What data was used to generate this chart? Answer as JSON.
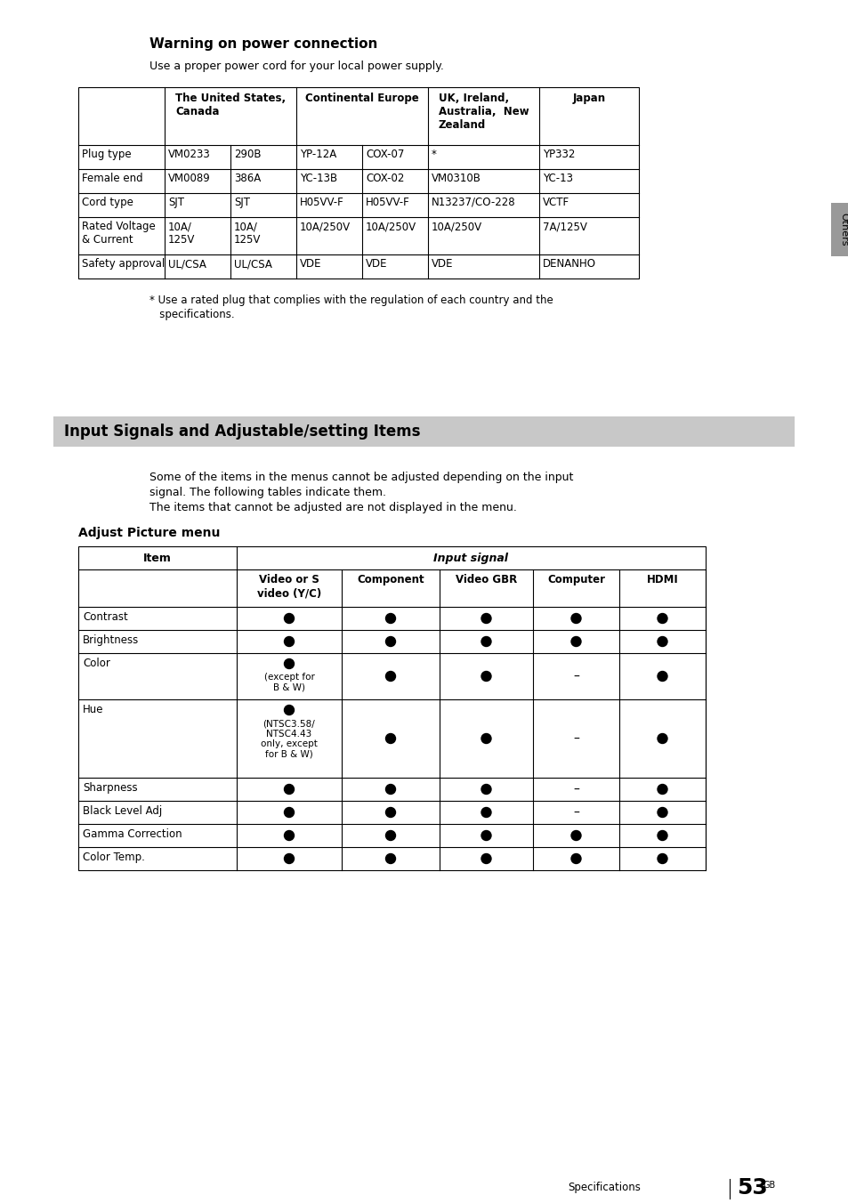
{
  "page_bg": "#ffffff",
  "title_warning": "Warning on power connection",
  "subtitle_warning": "Use a proper power cord for your local power supply.",
  "power_table_rows": [
    [
      "Plug type",
      "VM0233",
      "290B",
      "YP-12A",
      "COX-07",
      "*",
      "YP332"
    ],
    [
      "Female end",
      "VM0089",
      "386A",
      "YC-13B",
      "COX-02",
      "VM0310B",
      "YC-13"
    ],
    [
      "Cord type",
      "SJT",
      "SJT",
      "H05VV-F",
      "H05VV-F",
      "N13237/CO-228",
      "VCTF"
    ],
    [
      "Rated Voltage\n& Current",
      "10A/\n125V",
      "10A/\n125V",
      "10A/250V",
      "10A/250V",
      "10A/250V",
      "7A/125V"
    ],
    [
      "Safety approval",
      "UL/CSA",
      "UL/CSA",
      "VDE",
      "VDE",
      "VDE",
      "DENANHO"
    ]
  ],
  "footnote_line1": "* Use a rated plug that complies with the regulation of each country and the",
  "footnote_line2": "   specifications.",
  "section_title": "Input Signals and Adjustable/setting Items",
  "section_desc_line1": "Some of the items in the menus cannot be adjusted depending on the input",
  "section_desc_line2": "signal. The following tables indicate them.",
  "section_desc_line3": "The items that cannot be adjusted are not displayed in the menu.",
  "adjust_title": "Adjust Picture menu",
  "adjust_sub_headers": [
    "Video or S\nvideo (Y/C)",
    "Component",
    "Video GBR",
    "Computer",
    "HDMI"
  ],
  "adjust_rows": [
    [
      "Contrast",
      true,
      true,
      true,
      true,
      true
    ],
    [
      "Brightness",
      true,
      true,
      true,
      true,
      true
    ],
    [
      "Color",
      "bull_note",
      true,
      true,
      false,
      true
    ],
    [
      "Hue",
      "bull_note2",
      true,
      true,
      false,
      true
    ],
    [
      "Sharpness",
      true,
      true,
      true,
      false,
      true
    ],
    [
      "Black Level Adj",
      true,
      true,
      true,
      false,
      true
    ],
    [
      "Gamma Correction",
      true,
      true,
      true,
      true,
      true
    ],
    [
      "Color Temp.",
      true,
      true,
      true,
      true,
      true
    ]
  ],
  "color_note": "(except for\nB & W)",
  "hue_note": "(NTSC3.58/\nNTSC4.43\nonly, except\nfor B & W)",
  "sidebar_color": "#999999",
  "footer_page": "53"
}
